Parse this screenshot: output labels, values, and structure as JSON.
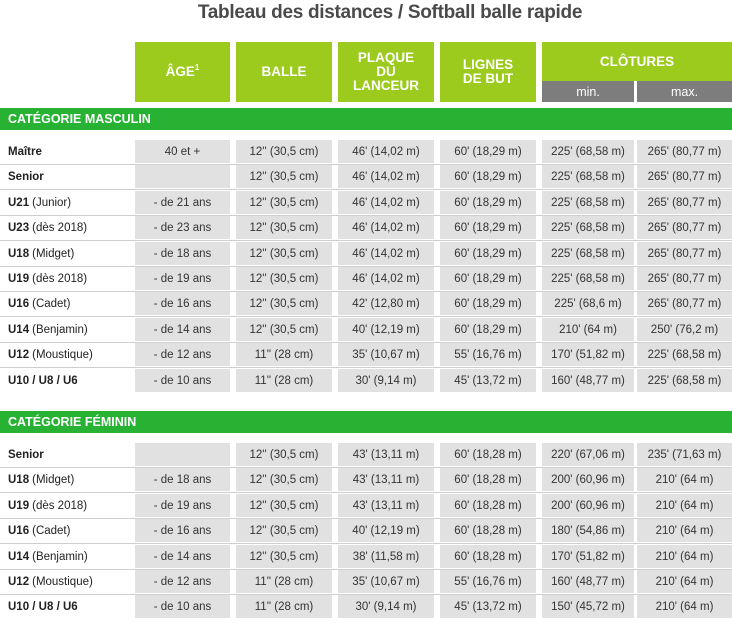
{
  "title": "Tableau des distances / Softball balle rapide",
  "header": {
    "age": "ÂGE",
    "age_note": "1",
    "balle": "BALLE",
    "plaque": "PLAQUE DU LANCEUR",
    "lignes": "LIGNES DE BUT",
    "clotures": "CLÔTURES",
    "min": "min.",
    "max": "max."
  },
  "sections": [
    {
      "title": "CATÉGORIE MASCULIN",
      "rows": [
        {
          "name": "Maître",
          "paren": "",
          "age": "40 et +",
          "balle": "12'' (30,5 cm)",
          "plaque": "46' (14,02 m)",
          "lignes": "60' (18,29 m)",
          "min": "225' (68,58 m)",
          "max": "265' (80,77 m)"
        },
        {
          "name": "Senior",
          "paren": "",
          "age": "",
          "balle": "12'' (30,5 cm)",
          "plaque": "46' (14,02 m)",
          "lignes": "60' (18,29 m)",
          "min": "225' (68,58 m)",
          "max": "265' (80,77 m)"
        },
        {
          "name": "U21",
          "paren": "(Junior)",
          "age": "- de 21 ans",
          "balle": "12'' (30,5 cm)",
          "plaque": "46' (14,02 m)",
          "lignes": "60' (18,29 m)",
          "min": "225' (68,58 m)",
          "max": "265' (80,77 m)"
        },
        {
          "name": "U23",
          "paren": "(dès 2018)",
          "age": "- de 23 ans",
          "balle": "12'' (30,5 cm)",
          "plaque": "46' (14,02 m)",
          "lignes": "60' (18,29 m)",
          "min": "225' (68,58 m)",
          "max": "265' (80,77 m)"
        },
        {
          "name": "U18",
          "paren": "(Midget)",
          "age": "- de 18 ans",
          "balle": "12'' (30,5 cm)",
          "plaque": "46' (14,02 m)",
          "lignes": "60' (18,29 m)",
          "min": "225' (68,58 m)",
          "max": "265' (80,77 m)"
        },
        {
          "name": "U19",
          "paren": "(dès 2018)",
          "age": "- de 19 ans",
          "balle": "12'' (30,5 cm)",
          "plaque": "46' (14,02 m)",
          "lignes": "60' (18,29 m)",
          "min": "225' (68,58 m)",
          "max": "265' (80,77 m)"
        },
        {
          "name": "U16",
          "paren": "(Cadet)",
          "age": "- de 16 ans",
          "balle": "12'' (30,5 cm)",
          "plaque": "42' (12,80 m)",
          "lignes": "60' (18,29 m)",
          "min": "225' (68,6 m)",
          "max": "265' (80,77 m)"
        },
        {
          "name": "U14",
          "paren": "(Benjamin)",
          "age": "- de 14 ans",
          "balle": "12'' (30,5 cm)",
          "plaque": "40' (12,19 m)",
          "lignes": "60' (18,29 m)",
          "min": "210' (64 m)",
          "max": "250' (76,2 m)"
        },
        {
          "name": "U12",
          "paren": "(Moustique)",
          "age": "- de 12 ans",
          "balle": "11'' (28 cm)",
          "plaque": "35' (10,67 m)",
          "lignes": "55' (16,76 m)",
          "min": "170' (51,82 m)",
          "max": "225' (68,58 m)"
        },
        {
          "name": "U10 / U8 / U6",
          "paren": "",
          "age": "- de 10 ans",
          "balle": "11'' (28 cm)",
          "plaque": "30' (9,14 m)",
          "lignes": "45' (13,72 m)",
          "min": "160' (48,77 m)",
          "max": "225' (68,58 m)"
        }
      ]
    },
    {
      "title": "CATÉGORIE FÉMININ",
      "rows": [
        {
          "name": "Senior",
          "paren": "",
          "age": "",
          "balle": "12'' (30,5 cm)",
          "plaque": "43' (13,11 m)",
          "lignes": "60' (18,28 m)",
          "min": "220' (67,06 m)",
          "max": "235' (71,63 m)"
        },
        {
          "name": "U18",
          "paren": "(Midget)",
          "age": "- de 18 ans",
          "balle": "12'' (30,5 cm)",
          "plaque": "43' (13,11 m)",
          "lignes": "60' (18,28 m)",
          "min": "200' (60,96 m)",
          "max": "210' (64 m)"
        },
        {
          "name": "U19",
          "paren": "(dès 2018)",
          "age": "- de 19 ans",
          "balle": "12'' (30,5 cm)",
          "plaque": "43' (13,11 m)",
          "lignes": "60' (18,28 m)",
          "min": "200' (60,96 m)",
          "max": "210' (64 m)"
        },
        {
          "name": "U16",
          "paren": "(Cadet)",
          "age": "- de 16 ans",
          "balle": "12'' (30,5 cm)",
          "plaque": "40' (12,19 m)",
          "lignes": "60' (18,28 m)",
          "min": "180' (54,86 m)",
          "max": "210' (64 m)"
        },
        {
          "name": "U14",
          "paren": "(Benjamin)",
          "age": "- de 14 ans",
          "balle": "12'' (30,5 cm)",
          "plaque": "38' (11,58 m)",
          "lignes": "60' (18,28 m)",
          "min": "170' (51,82 m)",
          "max": "210' (64 m)"
        },
        {
          "name": "U12",
          "paren": "(Moustique)",
          "age": "- de 12 ans",
          "balle": "11'' (28 cm)",
          "plaque": "35' (10,67 m)",
          "lignes": "55' (16,76 m)",
          "min": "160' (48,77 m)",
          "max": "210' (64 m)"
        },
        {
          "name": "U10 / U8 / U6",
          "paren": "",
          "age": "- de 10 ans",
          "balle": "11'' (28 cm)",
          "plaque": "30' (9,14 m)",
          "lignes": "45' (13,72 m)",
          "min": "150' (45,72 m)",
          "max": "210' (64 m)"
        }
      ]
    }
  ]
}
